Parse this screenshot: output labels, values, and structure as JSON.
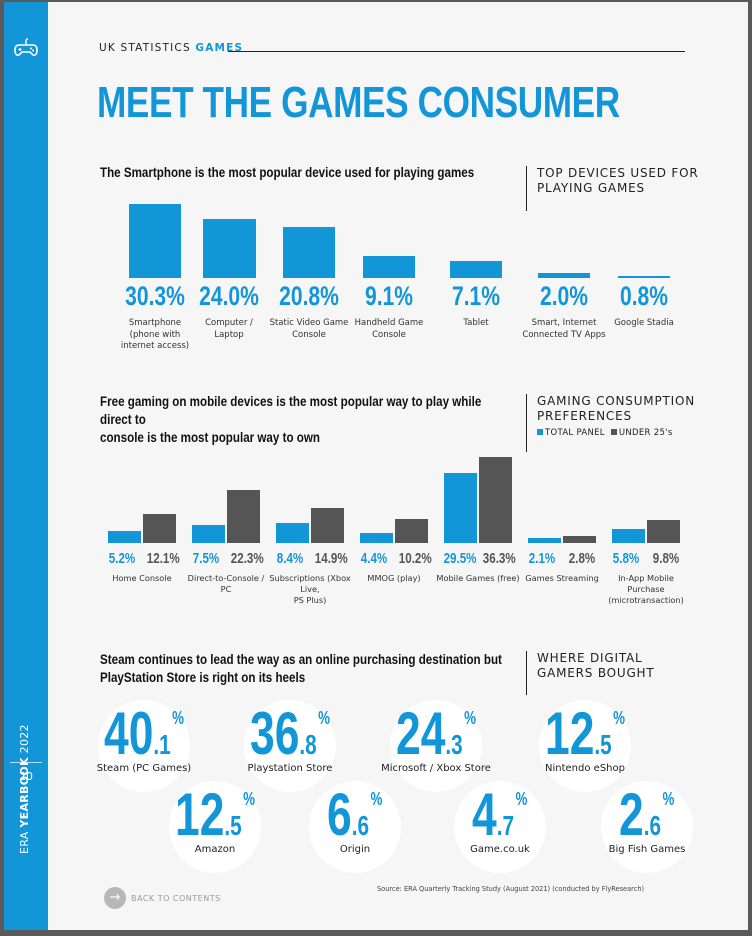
{
  "sidebar": {
    "yearbook_prefix": "ERA",
    "yearbook_bold": "YEARBOOK",
    "yearbook_year": "2022",
    "page_number": "20"
  },
  "header": {
    "label": "UK STATISTICS",
    "label_highlight": "GAMES"
  },
  "title": "MEET THE GAMES CONSUMER",
  "colors": {
    "accent": "#1296d8",
    "under25": "#555555"
  },
  "devices": {
    "heading": "The Smartphone is the most popular device used for playing games",
    "side_title": [
      "TOP DEVICES USED FOR",
      "PLAYING GAMES"
    ],
    "items": [
      {
        "value": 30.3,
        "value_label": "30.3%",
        "label": [
          "Smartphone",
          "(phone with",
          "internet access)"
        ]
      },
      {
        "value": 24.0,
        "value_label": "24.0%",
        "label": [
          "Computer /",
          "Laptop"
        ]
      },
      {
        "value": 20.8,
        "value_label": "20.8%",
        "label": [
          "Static Video Game",
          "Console"
        ]
      },
      {
        "value": 9.1,
        "value_label": "9.1%",
        "label": [
          "Handheld Game",
          "Console"
        ]
      },
      {
        "value": 7.1,
        "value_label": "7.1%",
        "label": [
          "Tablet"
        ]
      },
      {
        "value": 2.0,
        "value_label": "2.0%",
        "label": [
          "Smart, Internet",
          "Connected TV Apps"
        ]
      },
      {
        "value": 0.8,
        "value_label": "0.8%",
        "label": [
          "Google Stadia"
        ]
      }
    ]
  },
  "consumption": {
    "heading": [
      "Free gaming on mobile devices is the most popular way to play while direct to",
      "console is the most popular way to own"
    ],
    "side_title": [
      "GAMING CONSUMPTION",
      "PREFERENCES"
    ],
    "legend": {
      "total": "TOTAL PANEL",
      "under25": "UNDER 25's"
    },
    "items": [
      {
        "total": 5.2,
        "total_label": "5.2%",
        "under25": 12.1,
        "under25_label": "12.1%",
        "label": [
          "Home Console"
        ]
      },
      {
        "total": 7.5,
        "total_label": "7.5%",
        "under25": 22.3,
        "under25_label": "22.3%",
        "label": [
          "Direct-to-Console / PC"
        ]
      },
      {
        "total": 8.4,
        "total_label": "8.4%",
        "under25": 14.9,
        "under25_label": "14.9%",
        "label": [
          "Subscriptions (Xbox Live,",
          "PS Plus)"
        ]
      },
      {
        "total": 4.4,
        "total_label": "4.4%",
        "under25": 10.2,
        "under25_label": "10.2%",
        "label": [
          "MMOG (play)"
        ]
      },
      {
        "total": 29.5,
        "total_label": "29.5%",
        "under25": 36.3,
        "under25_label": "36.3%",
        "label": [
          "Mobile Games (free)"
        ]
      },
      {
        "total": 2.1,
        "total_label": "2.1%",
        "under25": 2.8,
        "under25_label": "2.8%",
        "label": [
          "Games Streaming"
        ]
      },
      {
        "total": 5.8,
        "total_label": "5.8%",
        "under25": 9.8,
        "under25_label": "9.8%",
        "label": [
          "In-App Mobile Purchase",
          "(microtransaction)"
        ]
      }
    ]
  },
  "stores": {
    "heading": [
      "Steam continues to lead the way as an online purchasing destination but",
      "PlayStation Store is right on its heels"
    ],
    "side_title": [
      "WHERE DIGITAL",
      "GAMERS BOUGHT"
    ],
    "items": [
      {
        "whole": "40",
        "decimal": ".1",
        "pct": "%",
        "label": "Steam (PC Games)"
      },
      {
        "whole": "36",
        "decimal": ".8",
        "pct": "%",
        "label": "Playstation Store"
      },
      {
        "whole": "24",
        "decimal": ".3",
        "pct": "%",
        "label": "Microsoft / Xbox Store"
      },
      {
        "whole": "12",
        "decimal": ".5",
        "pct": "%",
        "label": "Nintendo eShop"
      },
      {
        "whole": "12",
        "decimal": ".5",
        "pct": "%",
        "label": "Amazon"
      },
      {
        "whole": "6",
        "decimal": ".6",
        "pct": "%",
        "label": "Origin"
      },
      {
        "whole": "4",
        "decimal": ".7",
        "pct": "%",
        "label": "Game.co.uk"
      },
      {
        "whole": "2",
        "decimal": ".6",
        "pct": "%",
        "label": "Big Fish Games"
      }
    ]
  },
  "chart_data": [
    {
      "type": "bar",
      "title": "TOP DEVICES USED FOR PLAYING GAMES",
      "categories": [
        "Smartphone (phone with internet access)",
        "Computer / Laptop",
        "Static Video Game Console",
        "Handheld Game Console",
        "Tablet",
        "Smart, Internet Connected TV Apps",
        "Google Stadia"
      ],
      "values": [
        30.3,
        24.0,
        20.8,
        9.1,
        7.1,
        2.0,
        0.8
      ],
      "xlabel": "",
      "ylabel": "%"
    },
    {
      "type": "bar",
      "title": "GAMING CONSUMPTION PREFERENCES",
      "categories": [
        "Home Console",
        "Direct-to-Console / PC",
        "Subscriptions (Xbox Live, PS Plus)",
        "MMOG (play)",
        "Mobile Games (free)",
        "Games Streaming",
        "In-App Mobile Purchase (microtransaction)"
      ],
      "series": [
        {
          "name": "TOTAL PANEL",
          "values": [
            5.2,
            7.5,
            8.4,
            4.4,
            29.5,
            2.1,
            5.8
          ]
        },
        {
          "name": "UNDER 25's",
          "values": [
            12.1,
            22.3,
            14.9,
            10.2,
            36.3,
            2.8,
            9.8
          ]
        }
      ],
      "xlabel": "",
      "ylabel": "%"
    }
  ],
  "footer": {
    "back_label": "BACK TO CONTENTS",
    "source": "Source: ERA Quarterly Tracking Study  (August 2021) (conducted by FlyResearch)"
  }
}
